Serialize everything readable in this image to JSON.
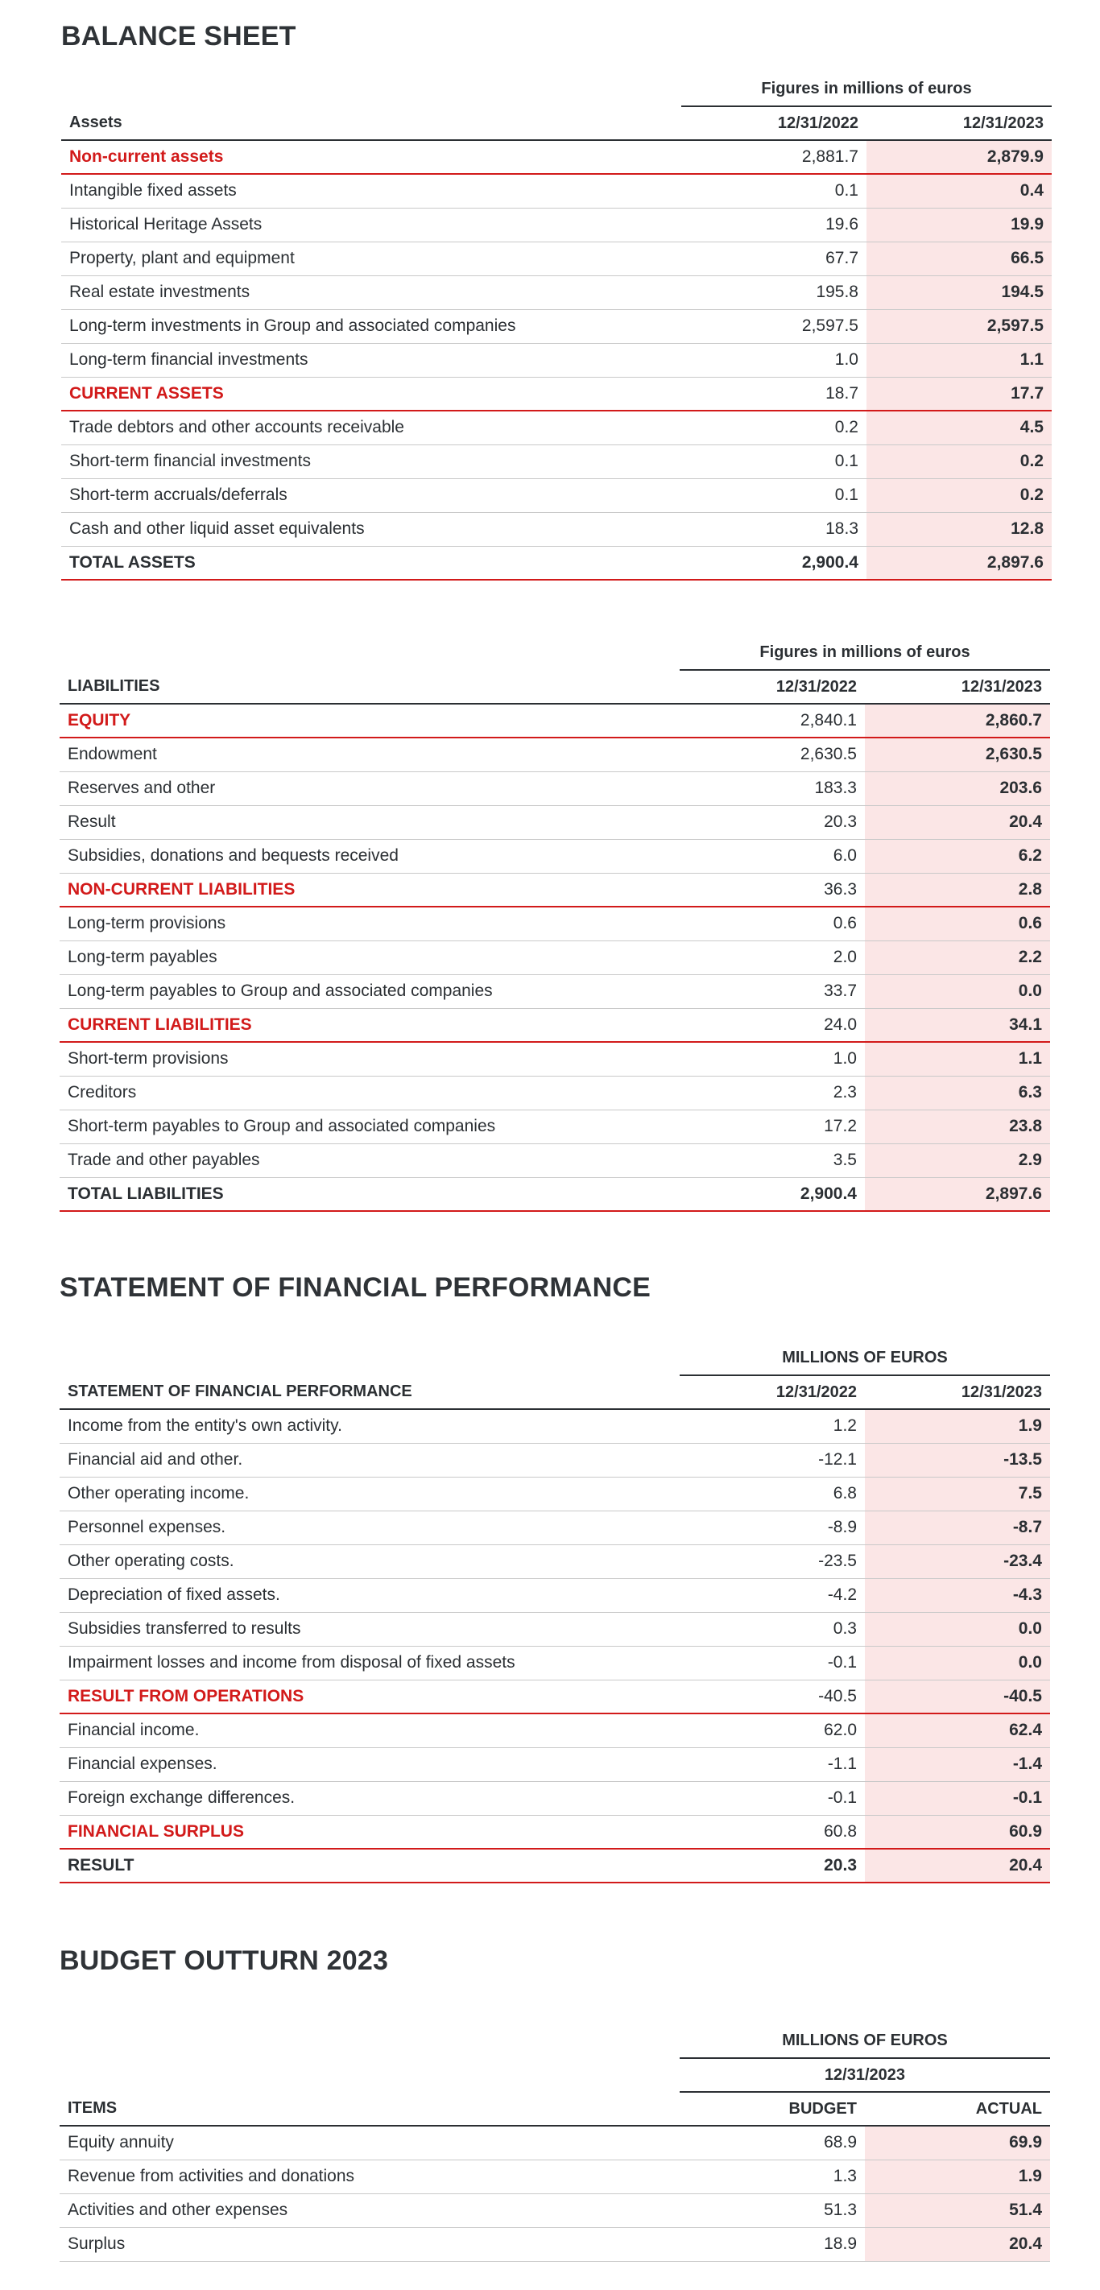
{
  "balance_sheet": {
    "title": "BALANCE SHEET",
    "assets": {
      "caption": "Figures in millions of euros",
      "header": {
        "label": "Assets",
        "prev": "12/31/2022",
        "curr": "12/31/2023"
      },
      "rows": [
        {
          "label": "Non-current assets",
          "prev": "2,881.7",
          "curr": "2,879.9",
          "type": "group"
        },
        {
          "label": "Intangible fixed assets",
          "prev": "0.1",
          "curr": "0.4",
          "type": "item"
        },
        {
          "label": "Historical Heritage Assets",
          "prev": "19.6",
          "curr": "19.9",
          "type": "item"
        },
        {
          "label": "Property, plant and equipment",
          "prev": "67.7",
          "curr": "66.5",
          "type": "item"
        },
        {
          "label": "Real estate investments",
          "prev": "195.8",
          "curr": "194.5",
          "type": "item"
        },
        {
          "label": "Long-term investments in Group and associated companies",
          "prev": "2,597.5",
          "curr": "2,597.5",
          "type": "item"
        },
        {
          "label": "Long-term financial investments",
          "prev": "1.0",
          "curr": "1.1",
          "type": "item"
        },
        {
          "label": "CURRENT ASSETS",
          "prev": "18.7",
          "curr": "17.7",
          "type": "group"
        },
        {
          "label": "Trade debtors and other accounts receivable",
          "prev": "0.2",
          "curr": "4.5",
          "type": "item"
        },
        {
          "label": "Short-term financial investments",
          "prev": "0.1",
          "curr": "0.2",
          "type": "item"
        },
        {
          "label": "Short-term accruals/deferrals",
          "prev": "0.1",
          "curr": "0.2",
          "type": "item"
        },
        {
          "label": "Cash and other liquid asset equivalents",
          "prev": "18.3",
          "curr": "12.8",
          "type": "item"
        },
        {
          "label": "TOTAL ASSETS",
          "prev": "2,900.4",
          "curr": "2,897.6",
          "type": "total"
        }
      ]
    },
    "liabilities": {
      "caption": "Figures in millions of euros",
      "header": {
        "label": "LIABILITIES",
        "prev": "12/31/2022",
        "curr": "12/31/2023"
      },
      "rows": [
        {
          "label": "EQUITY",
          "prev": "2,840.1",
          "curr": "2,860.7",
          "type": "group"
        },
        {
          "label": "Endowment",
          "prev": "2,630.5",
          "curr": "2,630.5",
          "type": "item"
        },
        {
          "label": "Reserves and other",
          "prev": "183.3",
          "curr": "203.6",
          "type": "item"
        },
        {
          "label": "Result",
          "prev": "20.3",
          "curr": "20.4",
          "type": "item"
        },
        {
          "label": "Subsidies, donations and bequests received",
          "prev": "6.0",
          "curr": "6.2",
          "type": "item"
        },
        {
          "label": "NON-CURRENT LIABILITIES",
          "prev": "36.3",
          "curr": "2.8",
          "type": "group"
        },
        {
          "label": "Long-term provisions",
          "prev": "0.6",
          "curr": "0.6",
          "type": "item"
        },
        {
          "label": "Long-term payables",
          "prev": "2.0",
          "curr": "2.2",
          "type": "item"
        },
        {
          "label": "Long-term payables to Group and associated companies",
          "prev": "33.7",
          "curr": "0.0",
          "type": "item"
        },
        {
          "label": "CURRENT LIABILITIES",
          "prev": "24.0",
          "curr": "34.1",
          "type": "group"
        },
        {
          "label": "Short-term provisions",
          "prev": "1.0",
          "curr": "1.1",
          "type": "item"
        },
        {
          "label": "Creditors",
          "prev": "2.3",
          "curr": "6.3",
          "type": "item"
        },
        {
          "label": "Short-term payables to Group and associated companies",
          "prev": "17.2",
          "curr": "23.8",
          "type": "item"
        },
        {
          "label": "Trade and other payables",
          "prev": "3.5",
          "curr": "2.9",
          "type": "item"
        },
        {
          "label": "TOTAL LIABILITIES",
          "prev": "2,900.4",
          "curr": "2,897.6",
          "type": "total"
        }
      ]
    }
  },
  "performance": {
    "title": "STATEMENT OF FINANCIAL PERFORMANCE",
    "caption": "MILLIONS OF EUROS",
    "header": {
      "label": "STATEMENT OF FINANCIAL PERFORMANCE",
      "prev": "12/31/2022",
      "curr": "12/31/2023"
    },
    "rows": [
      {
        "label": "Income from the entity's own activity.",
        "prev": "1.2",
        "curr": "1.9",
        "type": "item"
      },
      {
        "label": "Financial aid and other.",
        "prev": "-12.1",
        "curr": "-13.5",
        "type": "item"
      },
      {
        "label": "Other operating income.",
        "prev": "6.8",
        "curr": "7.5",
        "type": "item"
      },
      {
        "label": "Personnel expenses.",
        "prev": "-8.9",
        "curr": "-8.7",
        "type": "item"
      },
      {
        "label": "Other operating costs.",
        "prev": "-23.5",
        "curr": "-23.4",
        "type": "item"
      },
      {
        "label": "Depreciation of fixed assets.",
        "prev": "-4.2",
        "curr": "-4.3",
        "type": "item"
      },
      {
        "label": "Subsidies transferred to results",
        "prev": "0.3",
        "curr": "0.0",
        "type": "item"
      },
      {
        "label": "Impairment losses and income from disposal of fixed assets",
        "prev": "-0.1",
        "curr": "0.0",
        "type": "item"
      },
      {
        "label": "RESULT FROM OPERATIONS",
        "prev": "-40.5",
        "curr": "-40.5",
        "type": "group"
      },
      {
        "label": "Financial income.",
        "prev": "62.0",
        "curr": "62.4",
        "type": "item"
      },
      {
        "label": "Financial expenses.",
        "prev": "-1.1",
        "curr": "-1.4",
        "type": "item"
      },
      {
        "label": "Foreign exchange differences.",
        "prev": "-0.1",
        "curr": "-0.1",
        "type": "item"
      },
      {
        "label": "FINANCIAL SURPLUS",
        "prev": "60.8",
        "curr": "60.9",
        "type": "group"
      },
      {
        "label": "RESULT",
        "prev": "20.3",
        "curr": "20.4",
        "type": "total"
      }
    ]
  },
  "budget": {
    "title": "BUDGET OUTTURN 2023",
    "caption": "MILLIONS OF EUROS",
    "subcaption": "12/31/2023",
    "header": {
      "label": "ITEMS",
      "prev": "BUDGET",
      "curr": "ACTUAL"
    },
    "rows": [
      {
        "label": "Equity annuity",
        "prev": "68.9",
        "curr": "69.9",
        "type": "item"
      },
      {
        "label": "Revenue from activities and donations",
        "prev": "1.3",
        "curr": "1.9",
        "type": "item"
      },
      {
        "label": "Activities and other expenses",
        "prev": "51.3",
        "curr": "51.4",
        "type": "item"
      },
      {
        "label": "Surplus",
        "prev": "18.9",
        "curr": "20.4",
        "type": "item"
      }
    ]
  },
  "colors": {
    "accent": "#d21a1a",
    "highlight": "#fbe6e6",
    "text": "#2b2f33"
  }
}
